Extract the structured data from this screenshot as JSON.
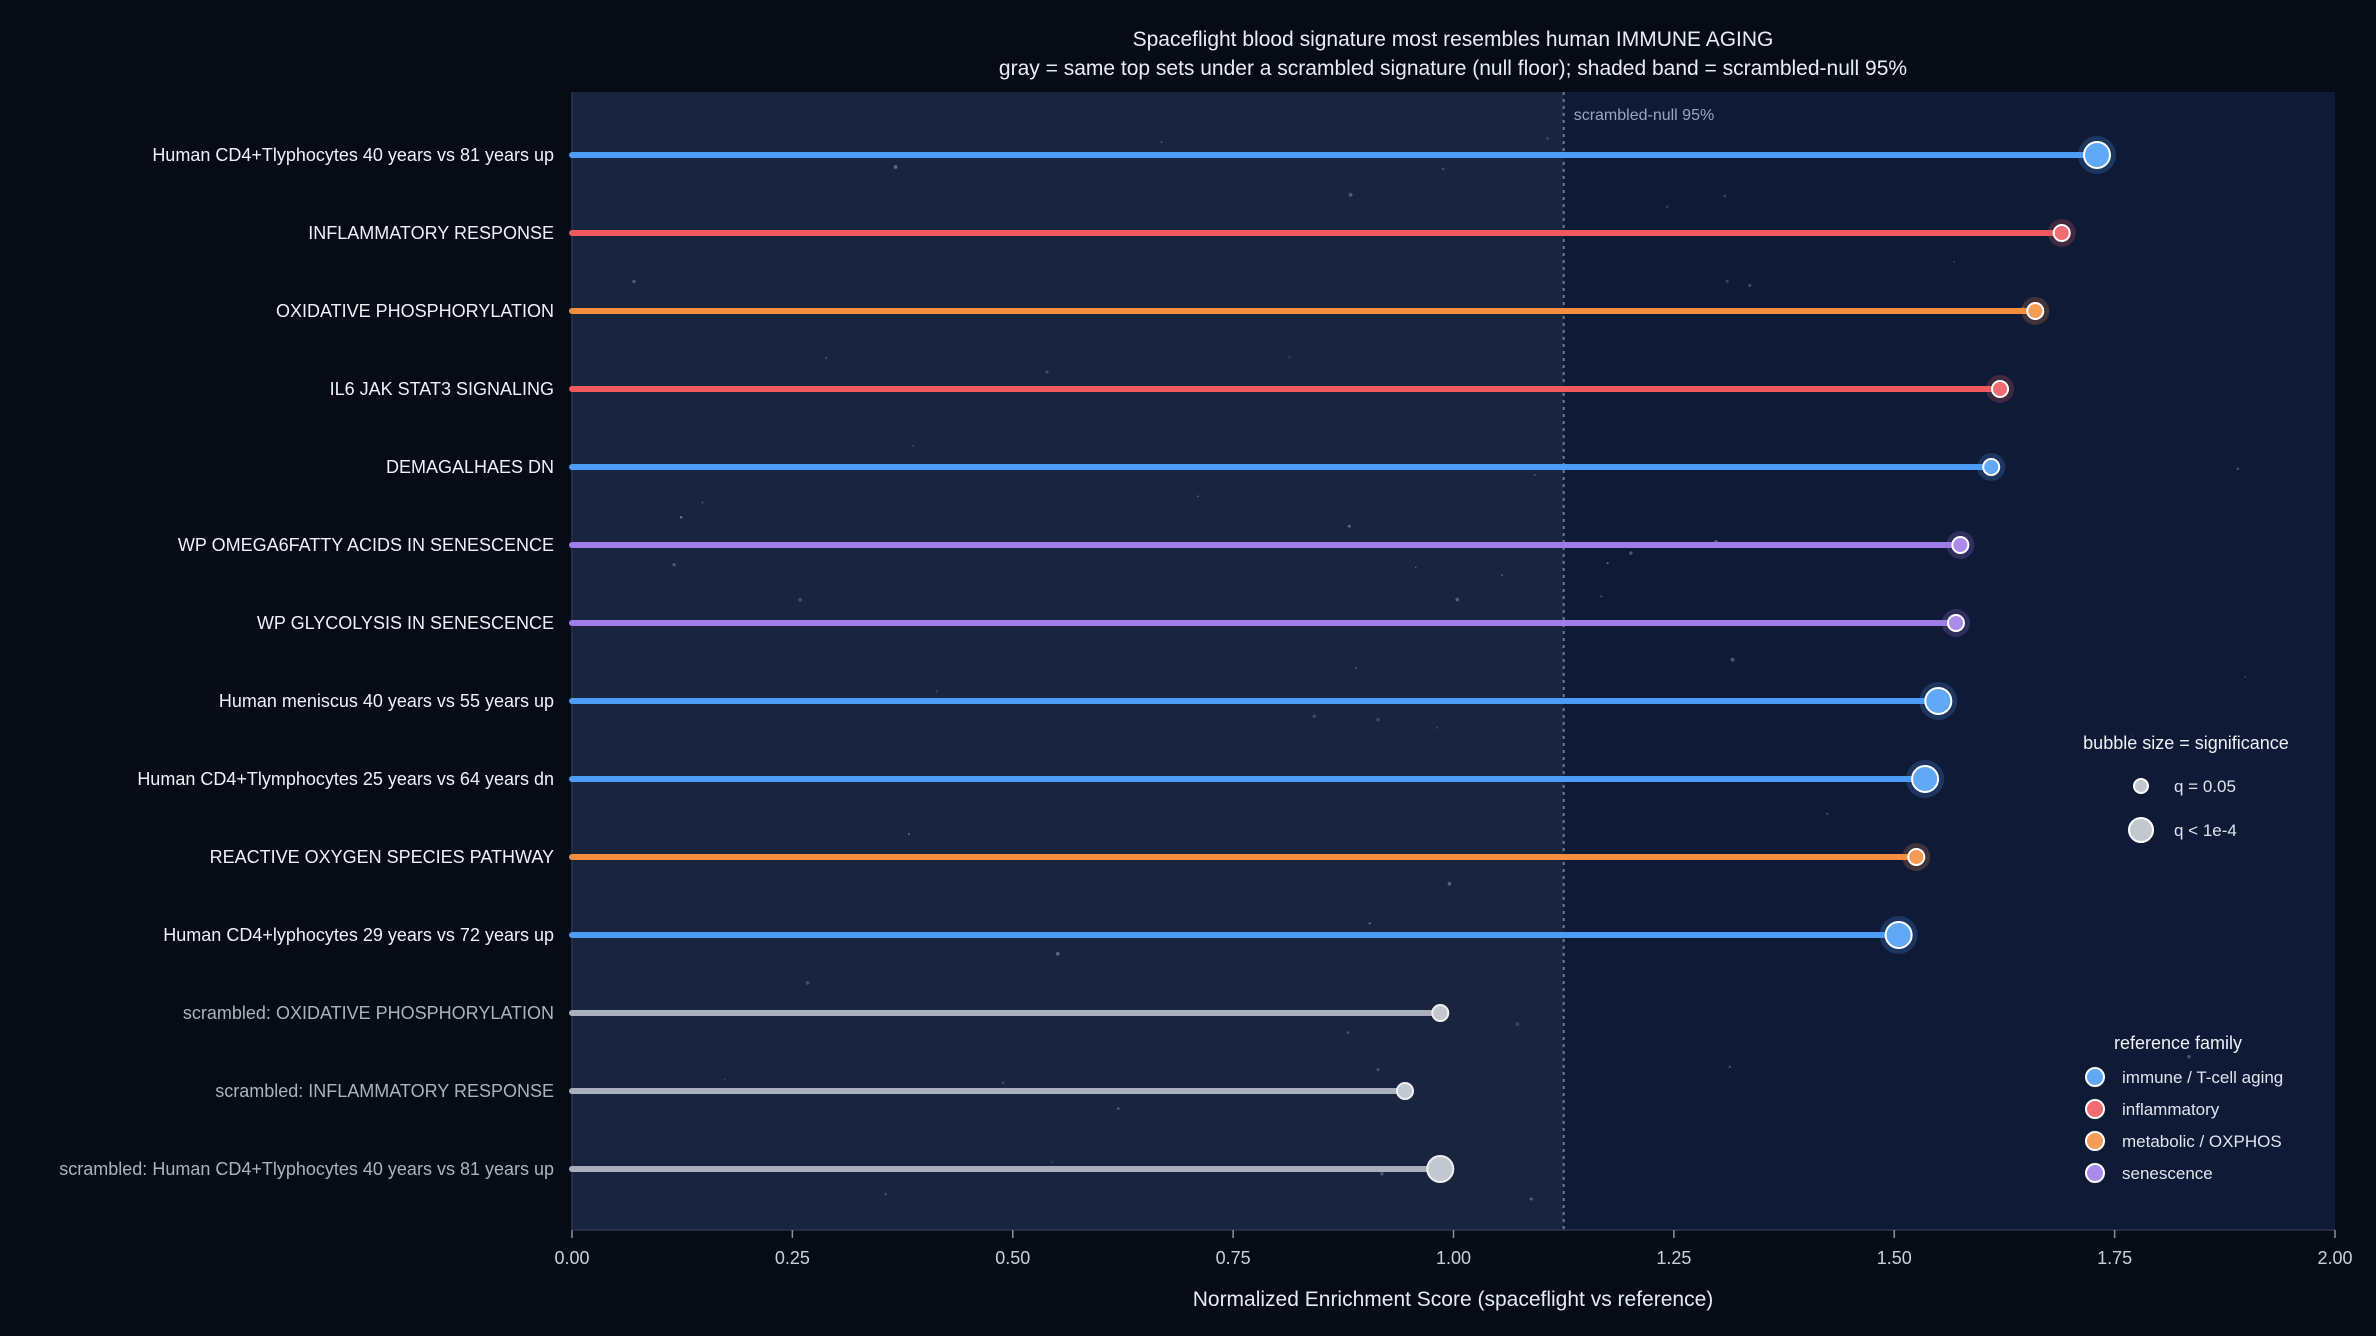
{
  "chart_data": {
    "type": "lollipop",
    "title": "Spaceflight blood signature most resembles human IMMUNE AGING",
    "subtitle": "gray = same top sets under a scrambled signature (null floor); shaded band = scrambled-null 95%",
    "xlabel": "Normalized Enrichment Score  (spaceflight vs reference)",
    "xlim": [
      0,
      2
    ],
    "xticks": [
      "0.00",
      "0.25",
      "0.50",
      "0.75",
      "1.00",
      "1.25",
      "1.50",
      "1.75",
      "2.00"
    ],
    "null_threshold": 1.125,
    "null_threshold_label": "scrambled-null 95%",
    "colors": {
      "immune": "#4c9df5",
      "inflammatory": "#f0595e",
      "metabolic": "#f58f3f",
      "senescence": "#a07ce8",
      "scrambled": "#a9b0bb"
    },
    "rows": [
      {
        "label": "Human CD4+Tlyphocytes 40 years vs 81 years up",
        "nes": 1.73,
        "family": "immune",
        "sig": "high"
      },
      {
        "label": "INFLAMMATORY RESPONSE",
        "nes": 1.69,
        "family": "inflammatory",
        "sig": "low"
      },
      {
        "label": "OXIDATIVE PHOSPHORYLATION",
        "nes": 1.66,
        "family": "metabolic",
        "sig": "low"
      },
      {
        "label": "IL6 JAK STAT3 SIGNALING",
        "nes": 1.62,
        "family": "inflammatory",
        "sig": "low"
      },
      {
        "label": "DEMAGALHAES DN",
        "nes": 1.61,
        "family": "immune",
        "sig": "low"
      },
      {
        "label": "WP OMEGA6FATTY ACIDS IN SENESCENCE",
        "nes": 1.575,
        "family": "senescence",
        "sig": "low"
      },
      {
        "label": "WP GLYCOLYSIS IN SENESCENCE",
        "nes": 1.57,
        "family": "senescence",
        "sig": "low"
      },
      {
        "label": "Human meniscus 40 years vs 55 years up",
        "nes": 1.55,
        "family": "immune",
        "sig": "high"
      },
      {
        "label": "Human CD4+Tlymphocytes 25 years vs 64 years dn",
        "nes": 1.535,
        "family": "immune",
        "sig": "high"
      },
      {
        "label": "REACTIVE OXYGEN SPECIES PATHWAY",
        "nes": 1.525,
        "family": "metabolic",
        "sig": "low"
      },
      {
        "label": "Human CD4+lyphocytes 29 years vs 72 years up",
        "nes": 1.505,
        "family": "immune",
        "sig": "high"
      },
      {
        "label": "scrambled: OXIDATIVE PHOSPHORYLATION",
        "nes": 0.985,
        "family": "scrambled",
        "sig": "low"
      },
      {
        "label": "scrambled: INFLAMMATORY RESPONSE",
        "nes": 0.945,
        "family": "scrambled",
        "sig": "low"
      },
      {
        "label": "scrambled: Human CD4+Tlyphocytes 40 years vs 81 years up",
        "nes": 0.985,
        "family": "scrambled",
        "sig": "high"
      }
    ],
    "legend_size": {
      "title": "bubble size = significance",
      "items": [
        {
          "label": "q = 0.05",
          "sig": "low"
        },
        {
          "label": "q < 1e-4",
          "sig": "high"
        }
      ]
    },
    "legend_family": {
      "title": "reference family",
      "items": [
        {
          "label": "immune / T-cell aging",
          "family": "immune"
        },
        {
          "label": "inflammatory",
          "family": "inflammatory"
        },
        {
          "label": "metabolic / OXPHOS",
          "family": "metabolic"
        },
        {
          "label": "senescence",
          "family": "senescence"
        }
      ]
    }
  }
}
